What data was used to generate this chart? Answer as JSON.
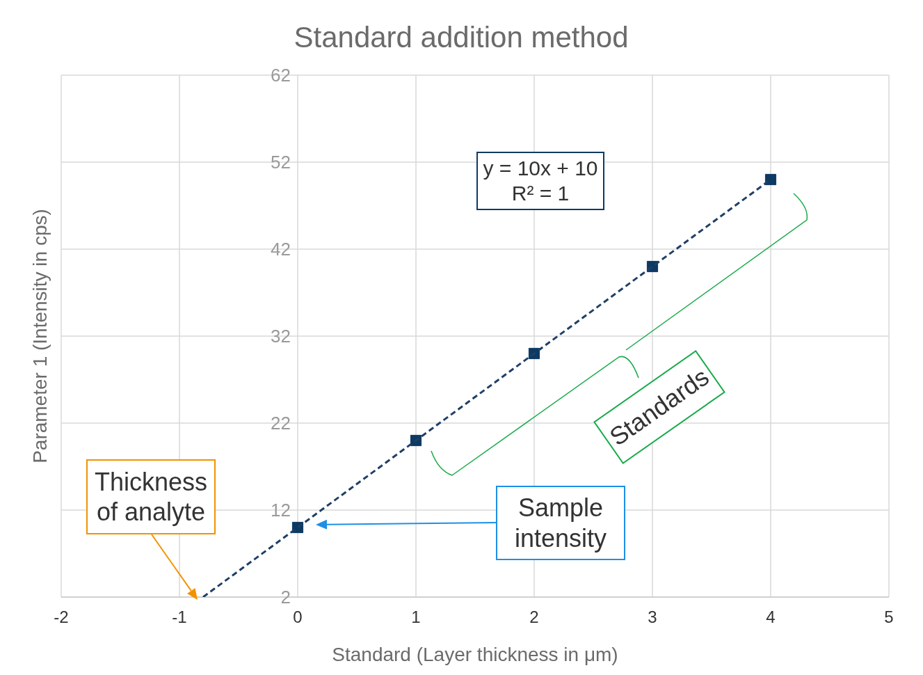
{
  "chart_data": {
    "type": "scatter",
    "title": "Standard addition method",
    "xlabel": "Standard (Layer thickness in μm)",
    "ylabel": "Parameter 1 (Intensity in cps)",
    "xlim": [
      -2,
      5
    ],
    "xticks": [
      -2,
      -1,
      0,
      1,
      2,
      3,
      4,
      5
    ],
    "ylim": [
      2,
      62
    ],
    "yticks": [
      2,
      12,
      22,
      32,
      42,
      52,
      62
    ],
    "grid": true,
    "series": [
      {
        "color": "#0d3a63",
        "marker": "square",
        "x": [
          0,
          1,
          2,
          3,
          4
        ],
        "values": [
          10,
          20,
          30,
          40,
          50
        ]
      },
      {
        "type": "line",
        "color": "#1f3f66",
        "line_style": "dashed",
        "marker": "none",
        "x": [
          -0.8,
          4
        ],
        "values": [
          2,
          50
        ]
      }
    ],
    "annotations": [
      "y = 10x + 10\nR² = 1",
      {
        "text": "Thickness of analyte",
        "x": -0.8,
        "y": 2
      },
      "Sample intensity",
      "Standards"
    ]
  }
}
